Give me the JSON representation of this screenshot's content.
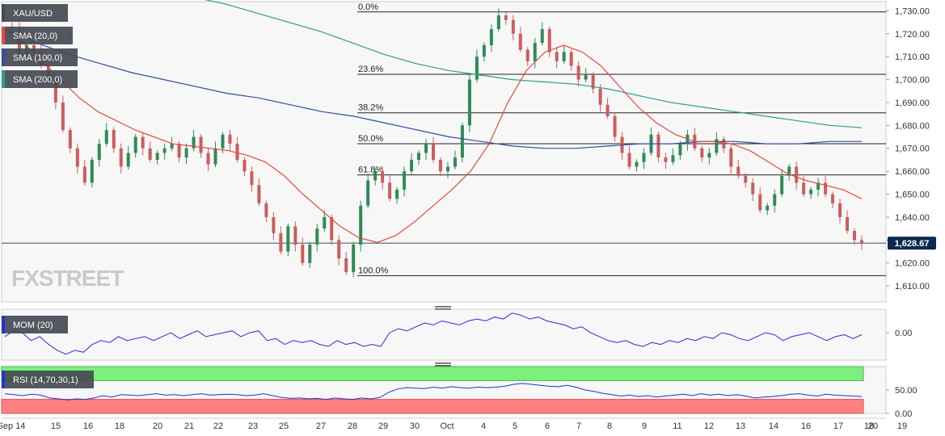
{
  "chart_data": [
    {
      "type": "candlestick",
      "symbol": "XAU/USD",
      "indicators": [
        "SMA (20,0)",
        "SMA (100,0)",
        "SMA (200,0)"
      ],
      "ylim": [
        1603,
        1734
      ],
      "y_ticks": [
        1610,
        1620,
        1630,
        1640,
        1650,
        1660,
        1670,
        1680,
        1690,
        1700,
        1710,
        1720,
        1730
      ],
      "y_tick_labels": [
        "1,610.00",
        "1,620.00",
        "",
        "1,640.00",
        "1,650.00",
        "1,660.00",
        "1,670.00",
        "1,680.00",
        "1,690.00",
        "1,700.00",
        "1,710.00",
        "1,720.00",
        "1,730.00"
      ],
      "last_price": 1628.67,
      "last_price_label": "1,628.67",
      "fibonacci": [
        {
          "label": "0.0%",
          "value": 1729.5
        },
        {
          "label": "23.6%",
          "value": 1702.3
        },
        {
          "label": "38.2%",
          "value": 1685.5
        },
        {
          "label": "50.0%",
          "value": 1672.0
        },
        {
          "label": "61.8%",
          "value": 1658.4
        },
        {
          "label": "100.0%",
          "value": 1614.5
        }
      ],
      "x_labels": [
        "Sep 14",
        "15",
        "16",
        "18",
        "20",
        "21",
        "22",
        "23",
        "25",
        "27",
        "28",
        "29",
        "30",
        "Oct",
        "4",
        "5",
        "6",
        "7",
        "8",
        "9",
        "11",
        "12",
        "13",
        "14",
        "16",
        "17",
        "18",
        "19",
        "20"
      ],
      "price_path": [
        1723,
        1722,
        1710,
        1715,
        1712,
        1706,
        1700,
        1690,
        1678,
        1670,
        1662,
        1655,
        1665,
        1672,
        1678,
        1670,
        1662,
        1668,
        1675,
        1670,
        1665,
        1668,
        1670,
        1672,
        1666,
        1670,
        1675,
        1668,
        1663,
        1670,
        1676,
        1672,
        1665,
        1660,
        1654,
        1646,
        1640,
        1633,
        1625,
        1636,
        1628,
        1620,
        1628,
        1635,
        1640,
        1630,
        1622,
        1616,
        1628,
        1645,
        1656,
        1660,
        1655,
        1648,
        1652,
        1660,
        1665,
        1668,
        1672,
        1665,
        1660,
        1662,
        1666,
        1680,
        1700,
        1710,
        1715,
        1722,
        1728,
        1726,
        1720,
        1713,
        1708,
        1716,
        1722,
        1712,
        1708,
        1712,
        1706,
        1700,
        1702,
        1696,
        1689,
        1684,
        1675,
        1668,
        1662,
        1664,
        1668,
        1676,
        1666,
        1664,
        1667,
        1672,
        1676,
        1670,
        1666,
        1668,
        1674,
        1670,
        1662,
        1658,
        1655,
        1650,
        1643,
        1645,
        1650,
        1658,
        1662,
        1655,
        1650,
        1652,
        1655,
        1650,
        1646,
        1640,
        1634,
        1630,
        1628.67
      ],
      "sma20": [
        1722,
        1716,
        1708,
        1700,
        1692,
        1686,
        1682,
        1678,
        1675,
        1672,
        1671,
        1670,
        1669,
        1667,
        1664,
        1658,
        1650,
        1643,
        1636,
        1631,
        1629,
        1632,
        1638,
        1645,
        1652,
        1660,
        1672,
        1690,
        1704,
        1712,
        1715,
        1712,
        1706,
        1697,
        1688,
        1681,
        1676,
        1673,
        1673,
        1672,
        1669,
        1664,
        1659,
        1656,
        1654,
        1652,
        1648
      ],
      "sma100": [
        1722,
        1716,
        1711,
        1707,
        1703,
        1700,
        1697,
        1694,
        1692,
        1689,
        1686,
        1684,
        1681,
        1678,
        1675,
        1673,
        1671,
        1670,
        1670,
        1671,
        1672,
        1672,
        1673,
        1673,
        1672,
        1672,
        1673,
        1673
      ],
      "sma200": [
        1744,
        1740,
        1736,
        1733,
        1729,
        1725,
        1721,
        1716,
        1711,
        1707,
        1704,
        1702,
        1700,
        1699,
        1698,
        1696,
        1693,
        1690,
        1688,
        1686,
        1684,
        1682,
        1680,
        1679
      ],
      "colors": {
        "up": "#2e8b57",
        "down": "#cd5c5c",
        "sma20": "#e64a3c",
        "sma100": "#2f4fa8",
        "sma200": "#2aa08a",
        "axis_text": "#333333"
      }
    },
    {
      "type": "line",
      "indicator": "MOM (20)",
      "ylim": [
        -0.7,
        0.6
      ],
      "y_ticks": [
        0
      ],
      "y_tick_labels": [
        "0.00"
      ],
      "values": [
        -0.1,
        0.05,
        0.0,
        -0.2,
        -0.1,
        -0.3,
        -0.45,
        -0.55,
        -0.45,
        -0.5,
        -0.3,
        -0.2,
        -0.25,
        -0.1,
        -0.2,
        -0.15,
        -0.1,
        -0.2,
        -0.1,
        0.0,
        -0.15,
        -0.05,
        0.05,
        -0.1,
        -0.05,
        0.0,
        0.05,
        -0.1,
        0.0,
        0.05,
        -0.2,
        -0.15,
        -0.3,
        -0.2,
        -0.25,
        -0.2,
        -0.3,
        -0.35,
        -0.2,
        -0.3,
        -0.25,
        -0.35,
        -0.3,
        -0.35,
        0.0,
        0.1,
        0.05,
        0.15,
        0.25,
        0.2,
        0.3,
        0.25,
        0.2,
        0.3,
        0.35,
        0.3,
        0.4,
        0.35,
        0.5,
        0.45,
        0.35,
        0.4,
        0.3,
        0.25,
        0.2,
        0.1,
        0.15,
        0.0,
        -0.1,
        -0.2,
        -0.25,
        -0.2,
        -0.3,
        -0.35,
        -0.25,
        -0.3,
        -0.2,
        -0.25,
        -0.15,
        -0.2,
        -0.1,
        -0.15,
        0.0,
        -0.05,
        -0.15,
        -0.2,
        -0.1,
        0.0,
        -0.05,
        -0.2,
        -0.1,
        -0.05,
        0.0,
        -0.1,
        -0.2,
        -0.1,
        -0.05,
        -0.15,
        -0.05
      ]
    },
    {
      "type": "line",
      "indicator": "RSI (14,70,30,1)",
      "ylim": [
        0,
        100
      ],
      "y_ticks": [
        0,
        50
      ],
      "y_tick_labels": [
        "0.00",
        "50.00"
      ],
      "overbought": 70,
      "oversold": 30,
      "values": [
        42,
        40,
        38,
        41,
        39,
        33,
        31,
        29,
        31,
        30,
        33,
        38,
        35,
        40,
        39,
        38,
        40,
        42,
        39,
        40,
        38,
        40,
        42,
        39,
        40,
        41,
        40,
        38,
        39,
        42,
        38,
        34,
        32,
        33,
        31,
        32,
        30,
        33,
        31,
        30,
        33,
        31,
        34,
        45,
        52,
        55,
        54,
        53,
        56,
        54,
        57,
        55,
        54,
        56,
        55,
        56,
        58,
        62,
        64,
        62,
        60,
        58,
        57,
        60,
        56,
        50,
        47,
        43,
        40,
        37,
        39,
        36,
        38,
        35,
        37,
        39,
        41,
        38,
        42,
        39,
        41,
        38,
        40,
        37,
        33,
        35,
        36,
        38,
        41,
        42,
        39,
        37,
        41,
        39,
        38,
        37,
        36
      ]
    }
  ],
  "logo": "FXSTREET"
}
